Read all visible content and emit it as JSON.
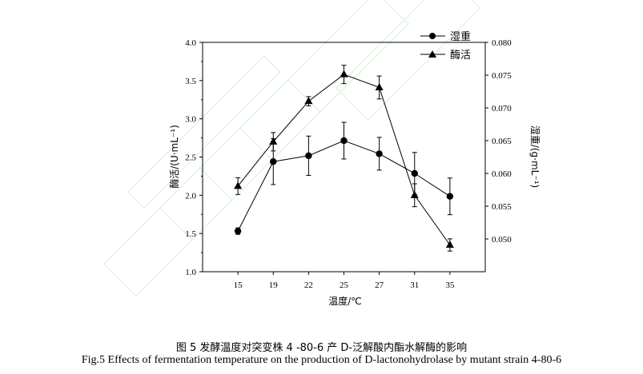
{
  "chart_data": {
    "type": "line",
    "categories": [
      "15",
      "19",
      "22",
      "25",
      "27",
      "31",
      "35"
    ],
    "xlabel": "温度/℃",
    "ylabel_left": "酶活/(U·mL⁻¹)",
    "ylabel_right": "湿重/(g·mL⁻¹)",
    "ylim_left": [
      1.0,
      4.0
    ],
    "yticks_left": [
      "1.0",
      "1.5",
      "2.0",
      "2.5",
      "3.0",
      "3.5",
      "4.0"
    ],
    "ylim_right": [
      0.045,
      0.08
    ],
    "yticks_right": [
      "0.050",
      "0.055",
      "0.060",
      "0.065",
      "0.070",
      "0.075",
      "0.080"
    ],
    "legend_position": "top-right",
    "series": [
      {
        "name": "湿重",
        "axis": "right",
        "marker": "circle",
        "values": [
          0.0512,
          0.0618,
          0.0627,
          0.065,
          0.063,
          0.06,
          0.0565
        ],
        "errors": [
          0.0005,
          0.0035,
          0.003,
          0.0028,
          0.0025,
          0.0032,
          0.0028
        ]
      },
      {
        "name": "酶活",
        "axis": "left",
        "marker": "triangle",
        "values": [
          2.12,
          2.7,
          3.23,
          3.58,
          3.41,
          2.0,
          1.35
        ],
        "errors": [
          0.11,
          0.12,
          0.06,
          0.12,
          0.15,
          0.15,
          0.08
        ]
      }
    ]
  },
  "captions": {
    "cn": "图 5  发酵温度对突变株 4 -80-6 产 D-泛解酸内酯水解酶的影响",
    "en": "Fig.5 Effects of fermentation temperature on the production of D-lactonohydrolase by mutant strain 4-80-6"
  }
}
